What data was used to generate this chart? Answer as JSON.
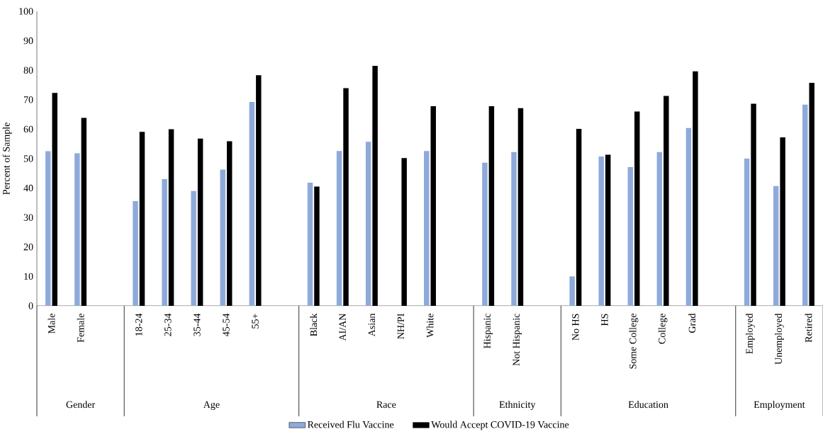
{
  "chart_data": {
    "type": "bar",
    "ylabel": "Percent of Sample",
    "categories": [
      "Male",
      "Female",
      null,
      "18-24",
      "25-34",
      "35-44",
      "45-54",
      "55+",
      null,
      "Black",
      "AI/AN",
      "Asian",
      "NH/PI",
      "White",
      null,
      "Hispanic",
      "Not Hispanic",
      null,
      "No HS",
      "HS",
      "Some College",
      "College",
      "Grad",
      null,
      "Employed",
      "Unemployed",
      "Retired"
    ],
    "series": [
      {
        "name": "Received Flu Vaccine",
        "color": "#8eaadb",
        "values": [
          52.5,
          51.8,
          null,
          35.6,
          43.0,
          39.0,
          46.3,
          69.2,
          null,
          41.8,
          52.6,
          55.7,
          null,
          52.6,
          null,
          48.6,
          52.2,
          null,
          10.0,
          50.7,
          47.1,
          52.2,
          60.4,
          null,
          50.0,
          40.7,
          68.3
        ]
      },
      {
        "name": "Would Accept COVID-19 Vaccine",
        "color": "#000000",
        "values": [
          72.3,
          63.8,
          null,
          59.1,
          60.0,
          56.8,
          55.9,
          78.3,
          null,
          40.5,
          73.9,
          81.5,
          50.2,
          67.8,
          null,
          67.8,
          67.1,
          null,
          60.1,
          51.3,
          66.0,
          71.3,
          79.6,
          null,
          68.6,
          57.2,
          75.7
        ]
      }
    ],
    "ylim": [
      0,
      100
    ],
    "yticks": [
      0,
      10,
      20,
      30,
      40,
      50,
      60,
      70,
      80,
      90,
      100
    ],
    "annotations": [
      "Gender",
      "Age",
      "Race",
      "Ethnicity",
      "Education",
      "Employment"
    ],
    "legend": "bottom"
  }
}
